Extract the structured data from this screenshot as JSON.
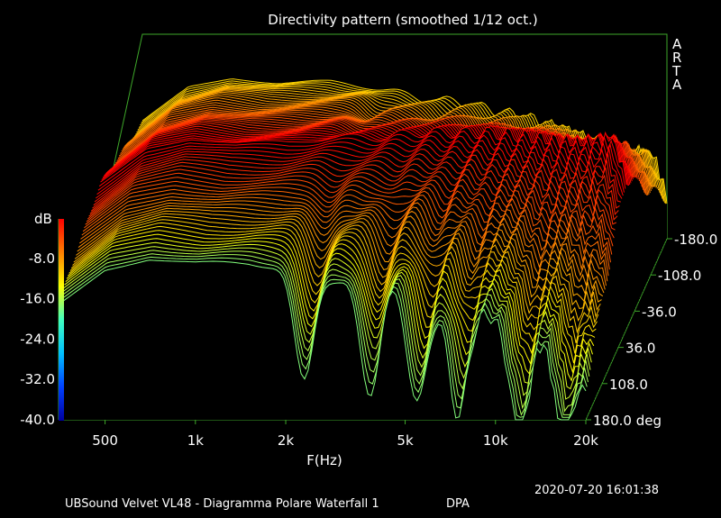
{
  "chart_data": {
    "type": "waterfall-3d",
    "title": "Directivity pattern (smoothed 1/12 oct.)",
    "brand": "ARTA",
    "xlabel": "F(Hz)",
    "x_ticks": [
      {
        "label": "500",
        "value": 500
      },
      {
        "label": "1k",
        "value": 1000
      },
      {
        "label": "2k",
        "value": 2000
      },
      {
        "label": "5k",
        "value": 5000
      },
      {
        "label": "10k",
        "value": 10000
      },
      {
        "label": "20k",
        "value": 20000
      }
    ],
    "xlim": [
      350,
      20000
    ],
    "ylabel": "dB",
    "y_ticks": [
      "-8.0",
      "-16.0",
      "-24.0",
      "-32.0",
      "-40.0"
    ],
    "ylim": [
      -40,
      0
    ],
    "z_ticks": [
      "-180.0",
      "-108.0",
      "-36.0",
      "36.0",
      "108.0",
      "180.0 deg"
    ],
    "zlim": [
      -180,
      180
    ],
    "colormap": [
      "#0000a0",
      "#0040ff",
      "#00c0ff",
      "#40ffc0",
      "#ffff00",
      "#ff8000",
      "#ff0000"
    ],
    "series_count": 73,
    "series_note": "One curve per angle from -180 to 180 deg in 5 deg steps; front curves (around +180 deg) show deep interference notches near 2.3k, 3.8k, 5.5k, 7.5k, 12k and 17k Hz.",
    "profile": {
      "freq": [
        350,
        500,
        700,
        1000,
        1500,
        2000,
        3000,
        4000,
        5000,
        7000,
        10000,
        14000,
        18000,
        20000
      ],
      "on_axis_db": [
        -11,
        -4,
        -2,
        -3,
        -3,
        -2,
        -2,
        -1,
        -1,
        -1,
        -2,
        -3,
        -2,
        -10
      ]
    }
  },
  "footer": {
    "timestamp": "2020-07-20  16:01:38",
    "caption": "UBSound Velvet VL48 - Diagramma Polare Waterfall 1",
    "tag": "DPA"
  }
}
